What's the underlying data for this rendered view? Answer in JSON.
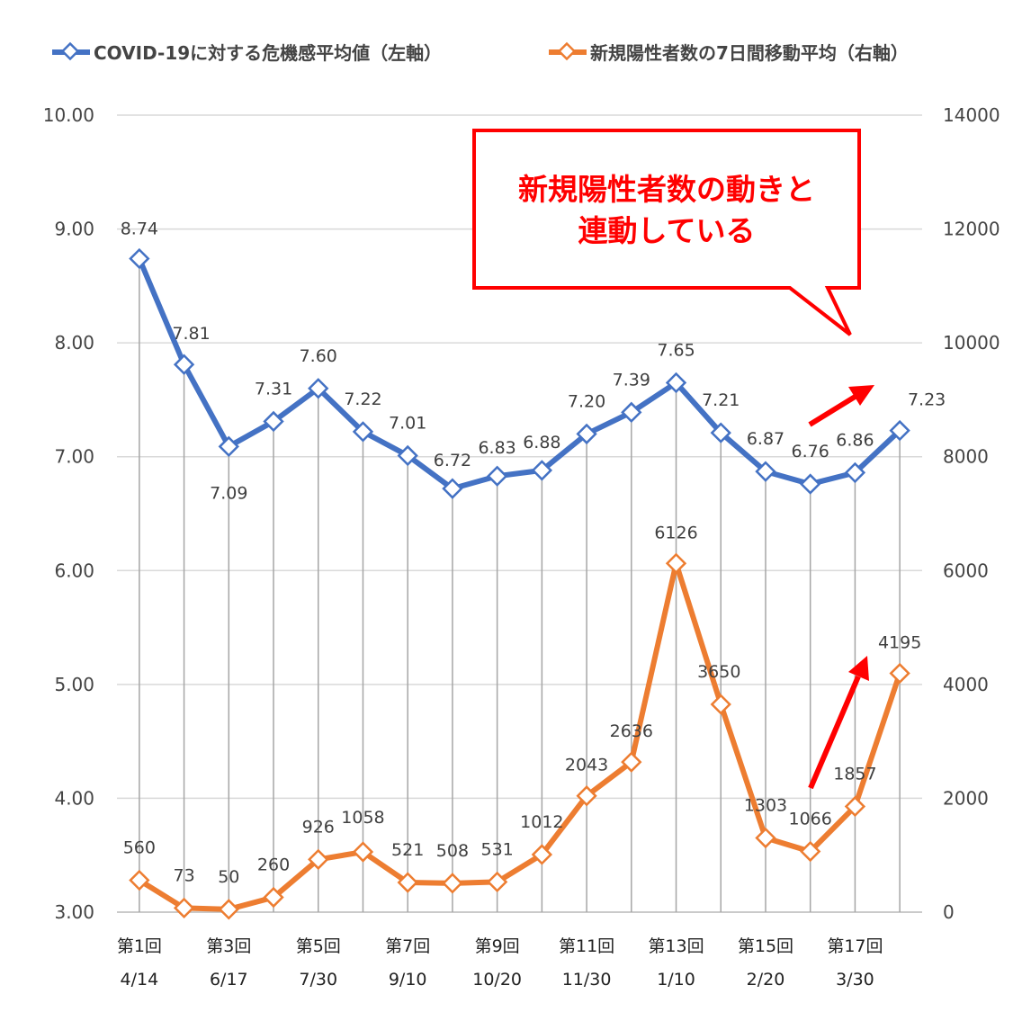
{
  "chart_data": {
    "type": "line",
    "title": "",
    "categories": [
      "第1回",
      "",
      "第3回",
      "",
      "第5回",
      "",
      "第7回",
      "",
      "第9回",
      "",
      "第11回",
      "",
      "第13回",
      "",
      "第15回",
      "",
      "第17回",
      ""
    ],
    "category_dates": [
      "4/14",
      "",
      "6/17",
      "",
      "7/30",
      "",
      "9/10",
      "",
      "10/20",
      "",
      "11/30",
      "",
      "1/10",
      "",
      "2/20",
      "",
      "3/30",
      ""
    ],
    "y_left": {
      "ylim": [
        3,
        10
      ],
      "ticks": [
        "3.00",
        "4.00",
        "5.00",
        "6.00",
        "7.00",
        "8.00",
        "9.00",
        "10.00"
      ]
    },
    "y_right": {
      "ylim": [
        0,
        14000
      ],
      "ticks": [
        "0",
        "2000",
        "4000",
        "6000",
        "8000",
        "10000",
        "12000",
        "14000"
      ]
    },
    "grid": "horizontal",
    "legend_position": "top",
    "series": [
      {
        "name": "COVID-19に対する危機感平均値（左軸）",
        "axis": "left",
        "color": "#4472c4",
        "values": [
          8.74,
          7.81,
          7.09,
          7.31,
          7.6,
          7.22,
          7.01,
          6.72,
          6.83,
          6.88,
          7.2,
          7.39,
          7.65,
          7.21,
          6.87,
          6.76,
          6.86,
          7.23
        ],
        "labels": [
          "8.74",
          "7.81",
          "7.09",
          "7.31",
          "7.60",
          "7.22",
          "7.01",
          "6.72",
          "6.83",
          "6.88",
          "7.20",
          "7.39",
          "7.65",
          "7.21",
          "6.87",
          "6.76",
          "6.86",
          "7.23"
        ]
      },
      {
        "name": "新規陽性者数の7日間移動平均（右軸）",
        "axis": "right",
        "color": "#ed7d31",
        "values": [
          560,
          73,
          50,
          260,
          926,
          1058,
          521,
          508,
          531,
          1012,
          2043,
          2636,
          6126,
          3650,
          1303,
          1066,
          1857,
          4195
        ],
        "labels": [
          "560",
          "73",
          "50",
          "260",
          "926",
          "1058",
          "521",
          "508",
          "531",
          "1012",
          "2043",
          "2636",
          "6126",
          "3650",
          "1303",
          "1066",
          "1857",
          "4195"
        ]
      }
    ],
    "annotations": {
      "callout_lines": [
        "新規陽性者数の動きと",
        "連動している"
      ],
      "callout_color": "#ff0000"
    }
  }
}
